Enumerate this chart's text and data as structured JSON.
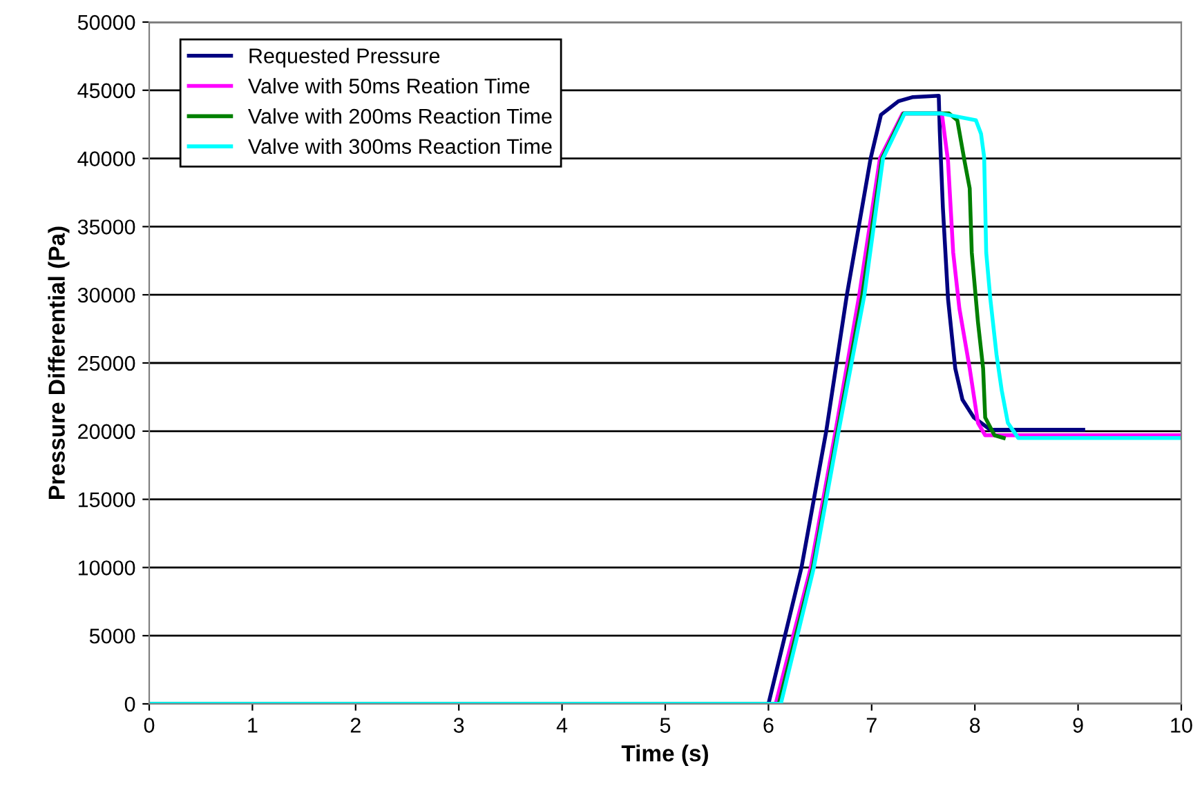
{
  "chart_data": {
    "type": "line",
    "xlabel": "Time (s)",
    "ylabel": "Pressure Differential (Pa)",
    "xlim": [
      0,
      10
    ],
    "xticks": [
      0,
      1,
      2,
      3,
      4,
      5,
      6,
      7,
      8,
      9,
      10
    ],
    "ylim": [
      0,
      50000
    ],
    "yticks": [
      0,
      5000,
      10000,
      15000,
      20000,
      25000,
      30000,
      35000,
      40000,
      45000,
      50000
    ],
    "grid": "y",
    "legend": "top left",
    "marker": "none",
    "line_style": "solid",
    "series": [
      {
        "name": "Requested Pressure",
        "color": "#000080",
        "x": [
          0,
          6.0,
          6.32,
          6.56,
          6.76,
          6.99,
          7.09,
          7.26,
          7.4,
          7.65,
          7.66,
          7.69,
          7.74,
          7.81,
          7.88,
          7.99,
          8.15,
          9.05
        ],
        "values": [
          0,
          0,
          10000,
          20000,
          30000,
          40000,
          43200,
          44200,
          44500,
          44600,
          42000,
          36400,
          29700,
          24600,
          22300,
          21000,
          20100,
          20100
        ]
      },
      {
        "name": "Valve with 50ms Reation Time",
        "color": "#ff00ff",
        "x": [
          0,
          6.07,
          6.41,
          6.65,
          6.88,
          7.08,
          7.3,
          7.68,
          7.74,
          7.79,
          7.85,
          7.95,
          8.03,
          8.1,
          10
        ],
        "values": [
          0,
          0,
          10000,
          20000,
          30000,
          40000,
          43300,
          43300,
          39800,
          33100,
          29000,
          24600,
          20600,
          19700,
          19700
        ]
      },
      {
        "name": "Valve with 200ms Reaction Time",
        "color": "#008000",
        "x": [
          0,
          6.1,
          6.43,
          6.67,
          6.91,
          7.1,
          7.31,
          7.75,
          7.83,
          7.9,
          7.95,
          7.97,
          8.03,
          8.08,
          8.1,
          8.19,
          8.28
        ],
        "values": [
          0,
          0,
          10000,
          20000,
          30000,
          40000,
          43300,
          43300,
          42800,
          39800,
          37800,
          33100,
          28000,
          24600,
          21000,
          19700,
          19500
        ]
      },
      {
        "name": "Valve with 300ms Reaction Time",
        "color": "#00ffff",
        "x": [
          0,
          6.12,
          6.44,
          6.68,
          6.93,
          7.11,
          7.32,
          7.67,
          8.01,
          8.06,
          8.09,
          8.11,
          8.15,
          8.21,
          8.26,
          8.32,
          8.42,
          10
        ],
        "values": [
          0,
          0,
          10000,
          20000,
          30000,
          40000,
          43300,
          43300,
          42800,
          41800,
          40100,
          33100,
          29700,
          25600,
          23000,
          20600,
          19500,
          19500
        ]
      }
    ]
  }
}
